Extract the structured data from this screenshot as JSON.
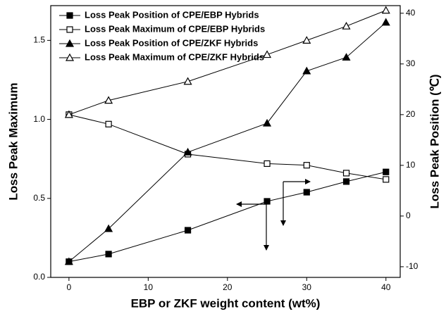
{
  "chart_data": {
    "type": "line",
    "xlabel": "EBP or ZKF weight content (wt%)",
    "ylabel": "Loss Peak Maximum",
    "y2label": "Loss Peak Position (℃)",
    "x": [
      0,
      5,
      15,
      25,
      30,
      35,
      40
    ],
    "xlim": [
      -2.3,
      41.8
    ],
    "xticks": [
      0,
      10,
      20,
      30,
      40
    ],
    "ylim": [
      0,
      1.72
    ],
    "yticks": [
      {
        "value": 0,
        "label": "0.0"
      },
      {
        "value": 0.5,
        "label": "0.5"
      },
      {
        "value": 1,
        "label": "1.0"
      },
      {
        "value": 1.5,
        "label": "1.5"
      }
    ],
    "y2lim": [
      -12.1,
      41.5
    ],
    "y2ticks": [
      -10,
      0,
      10,
      20,
      30,
      40
    ],
    "legend": "top-left",
    "series": [
      {
        "name": "Loss Peak Position of CPE/EBP Hybrids",
        "color": "#000000",
        "marker": "square",
        "filled": true,
        "axis": "y2",
        "values": [
          -9.0,
          -7.5,
          -2.8,
          2.9,
          4.7,
          6.8,
          8.7
        ]
      },
      {
        "name": "Loss Peak Maximum of CPE/EBP Hybrids",
        "color": "#000000",
        "marker": "square",
        "filled": false,
        "values": [
          1.03,
          0.97,
          0.78,
          0.72,
          0.71,
          0.66,
          0.62
        ]
      },
      {
        "name": "Loss Peak Position of CPE/ZKF Hybrids",
        "color": "#000000",
        "marker": "triangle",
        "filled": true,
        "axis": "y2",
        "values": [
          -9.0,
          -2.5,
          12.6,
          18.3,
          28.6,
          31.3,
          38.2
        ]
      },
      {
        "name": "Loss Peak Maximum of CPE/ZKF Hybrids",
        "color": "#000000",
        "marker": "triangle",
        "filled": false,
        "values": [
          1.03,
          1.12,
          1.24,
          1.41,
          1.5,
          1.59,
          1.69
        ]
      }
    ]
  }
}
